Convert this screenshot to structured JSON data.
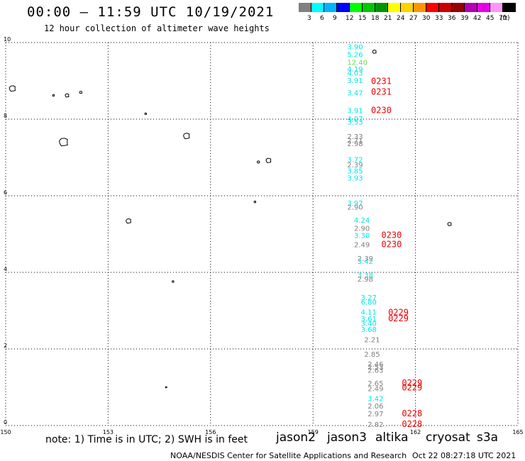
{
  "header": {
    "title": "00:00 — 11:59 UTC 10/19/2021",
    "subtitle": "12 hour collection of altimeter wave heights"
  },
  "color_scale": {
    "unit": "(ft)",
    "steps": [
      {
        "label": "3",
        "color": "#808080"
      },
      {
        "label": "6",
        "color": "#00ffff"
      },
      {
        "label": "9",
        "color": "#00b4ff"
      },
      {
        "label": "12",
        "color": "#0000ff"
      },
      {
        "label": "15",
        "color": "#00ff00"
      },
      {
        "label": "18",
        "color": "#00c800"
      },
      {
        "label": "21",
        "color": "#009600"
      },
      {
        "label": "24",
        "color": "#ffff00"
      },
      {
        "label": "27",
        "color": "#ffd200"
      },
      {
        "label": "30",
        "color": "#ff9600"
      },
      {
        "label": "33",
        "color": "#ff0000"
      },
      {
        "label": "36",
        "color": "#c80000"
      },
      {
        "label": "39",
        "color": "#960000"
      },
      {
        "label": "42",
        "color": "#b400b4"
      },
      {
        "label": "45",
        "color": "#e600e6"
      },
      {
        "label": "70",
        "color": "#ff96ff"
      },
      {
        "label": "",
        "color": "#000000"
      }
    ]
  },
  "map": {
    "x_range": [
      150,
      165
    ],
    "y_range": [
      0,
      10
    ],
    "x_ticks": [
      150,
      153,
      156,
      159,
      162,
      165
    ],
    "y_ticks": [
      0,
      2,
      4,
      6,
      8,
      10
    ],
    "readings": [
      {
        "lon": 160.0,
        "lat": 9.82,
        "text": "3.90",
        "color": "#00e6e6"
      },
      {
        "lon": 160.0,
        "lat": 9.62,
        "text": "5.26",
        "color": "#00e6e6"
      },
      {
        "lon": 160.0,
        "lat": 9.42,
        "text": "12.40",
        "color": "#66dd44"
      },
      {
        "lon": 160.0,
        "lat": 9.24,
        "text": "4.19",
        "color": "#00e6e6"
      },
      {
        "lon": 160.0,
        "lat": 9.14,
        "text": "4.03",
        "color": "#00e6e6"
      },
      {
        "lon": 160.0,
        "lat": 8.94,
        "text": "3.91",
        "color": "#00e6e6"
      },
      {
        "lon": 160.0,
        "lat": 8.62,
        "text": "3.47",
        "color": "#00e6e6"
      },
      {
        "lon": 160.0,
        "lat": 8.16,
        "text": "3.91",
        "color": "#00e6e6"
      },
      {
        "lon": 160.0,
        "lat": 7.94,
        "text": "4.07",
        "color": "#00e6e6"
      },
      {
        "lon": 160.0,
        "lat": 7.86,
        "text": "3.53",
        "color": "#00e6e6"
      },
      {
        "lon": 160.0,
        "lat": 7.48,
        "text": "2.33",
        "color": "#808080"
      },
      {
        "lon": 160.0,
        "lat": 7.38,
        "text": "2.71",
        "color": "#808080"
      },
      {
        "lon": 160.0,
        "lat": 7.3,
        "text": "2.98",
        "color": "#808080"
      },
      {
        "lon": 160.0,
        "lat": 6.88,
        "text": "3.72",
        "color": "#00e6e6"
      },
      {
        "lon": 160.0,
        "lat": 6.74,
        "text": "2.39",
        "color": "#808080"
      },
      {
        "lon": 160.0,
        "lat": 6.58,
        "text": "3.85",
        "color": "#00e6e6"
      },
      {
        "lon": 160.0,
        "lat": 6.4,
        "text": "3.93",
        "color": "#00e6e6"
      },
      {
        "lon": 160.0,
        "lat": 5.74,
        "text": "3.97",
        "color": "#00e6e6"
      },
      {
        "lon": 160.0,
        "lat": 5.64,
        "text": "2.90",
        "color": "#808080"
      },
      {
        "lon": 160.2,
        "lat": 5.3,
        "text": "4.24",
        "color": "#00e6e6"
      },
      {
        "lon": 160.2,
        "lat": 5.08,
        "text": "2.90",
        "color": "#808080"
      },
      {
        "lon": 160.2,
        "lat": 4.9,
        "text": "3.30",
        "color": "#00e6e6"
      },
      {
        "lon": 160.2,
        "lat": 4.66,
        "text": "2.49",
        "color": "#808080"
      },
      {
        "lon": 160.3,
        "lat": 4.3,
        "text": "2.39",
        "color": "#808080"
      },
      {
        "lon": 160.3,
        "lat": 4.22,
        "text": "3.42",
        "color": "#00e6e6"
      },
      {
        "lon": 160.3,
        "lat": 3.86,
        "text": "3.38",
        "color": "#00e6e6"
      },
      {
        "lon": 160.3,
        "lat": 3.76,
        "text": "2.98",
        "color": "#808080"
      },
      {
        "lon": 160.4,
        "lat": 3.28,
        "text": "3.27",
        "color": "#00e6e6"
      },
      {
        "lon": 160.4,
        "lat": 3.16,
        "text": "6.80",
        "color": "#00e6e6"
      },
      {
        "lon": 160.4,
        "lat": 2.9,
        "text": "4.11",
        "color": "#00e6e6"
      },
      {
        "lon": 160.4,
        "lat": 2.72,
        "text": "3.61",
        "color": "#00e6e6"
      },
      {
        "lon": 160.4,
        "lat": 2.6,
        "text": "3.40",
        "color": "#00e6e6"
      },
      {
        "lon": 160.4,
        "lat": 2.44,
        "text": "3.68",
        "color": "#00e6e6"
      },
      {
        "lon": 160.5,
        "lat": 2.18,
        "text": "2.21",
        "color": "#808080"
      },
      {
        "lon": 160.5,
        "lat": 1.8,
        "text": "2.85",
        "color": "#808080"
      },
      {
        "lon": 160.6,
        "lat": 1.54,
        "text": "2.46",
        "color": "#808080"
      },
      {
        "lon": 160.6,
        "lat": 1.46,
        "text": "2.53",
        "color": "#808080"
      },
      {
        "lon": 160.6,
        "lat": 1.38,
        "text": "2.63",
        "color": "#808080"
      },
      {
        "lon": 160.6,
        "lat": 1.04,
        "text": "2.65",
        "color": "#808080"
      },
      {
        "lon": 160.6,
        "lat": 0.9,
        "text": "2.49",
        "color": "#808080"
      },
      {
        "lon": 160.6,
        "lat": 0.64,
        "text": "3.42",
        "color": "#00e6e6"
      },
      {
        "lon": 160.6,
        "lat": 0.44,
        "text": "2.06",
        "color": "#808080"
      },
      {
        "lon": 160.6,
        "lat": 0.24,
        "text": "2.97",
        "color": "#808080"
      },
      {
        "lon": 160.6,
        "lat": -0.04,
        "text": "2.82",
        "color": "#808080"
      }
    ],
    "pass_times": [
      {
        "lon": 160.7,
        "lat": 8.92,
        "text": "0231"
      },
      {
        "lon": 160.7,
        "lat": 8.64,
        "text": "0231"
      },
      {
        "lon": 160.7,
        "lat": 8.16,
        "text": "0230"
      },
      {
        "lon": 161.0,
        "lat": 4.9,
        "text": "0230"
      },
      {
        "lon": 161.0,
        "lat": 4.66,
        "text": "0230"
      },
      {
        "lon": 161.2,
        "lat": 2.88,
        "text": "0229"
      },
      {
        "lon": 161.2,
        "lat": 2.72,
        "text": "0229"
      },
      {
        "lon": 161.6,
        "lat": 1.04,
        "text": "0229"
      },
      {
        "lon": 161.6,
        "lat": 0.92,
        "text": "0229"
      },
      {
        "lon": 161.6,
        "lat": 0.24,
        "text": "0228"
      },
      {
        "lon": 161.6,
        "lat": -0.04,
        "text": "0228"
      }
    ],
    "islands": [
      {
        "lon": 150.2,
        "lat": 8.8,
        "size": 5
      },
      {
        "lon": 151.4,
        "lat": 8.62,
        "size": 1.5
      },
      {
        "lon": 151.8,
        "lat": 8.62,
        "size": 3
      },
      {
        "lon": 152.2,
        "lat": 8.7,
        "size": 2
      },
      {
        "lon": 154.1,
        "lat": 8.14,
        "size": 1.5
      },
      {
        "lon": 151.7,
        "lat": 7.4,
        "size": 7
      },
      {
        "lon": 155.3,
        "lat": 7.56,
        "size": 5
      },
      {
        "lon": 157.7,
        "lat": 6.92,
        "size": 4
      },
      {
        "lon": 157.4,
        "lat": 6.88,
        "size": 2
      },
      {
        "lon": 153.6,
        "lat": 5.34,
        "size": 4
      },
      {
        "lon": 157.3,
        "lat": 5.84,
        "size": 1.5
      },
      {
        "lon": 160.8,
        "lat": 9.76,
        "size": 3
      },
      {
        "lon": 163.0,
        "lat": 5.26,
        "size": 3
      },
      {
        "lon": 154.9,
        "lat": 3.76,
        "size": 1.5
      },
      {
        "lon": 154.7,
        "lat": 1.0,
        "size": 1.2
      }
    ]
  },
  "footer": {
    "note": "note: 1) Time is in UTC; 2) SWH is in feet",
    "missions": [
      {
        "label": "jason2",
        "color": "#0000dd"
      },
      {
        "label": "jason3",
        "color": "#00a000"
      },
      {
        "label": "altika",
        "color": "#ff9900"
      },
      {
        "label": "cryosat",
        "color": "#dd0000"
      },
      {
        "label": "s3a",
        "color": "#880000"
      }
    ],
    "credit": "NOAA/NESDIS Center for Satellite Applications and Research",
    "timestamp": "Oct 22 08:27:18 UTC 2021"
  }
}
